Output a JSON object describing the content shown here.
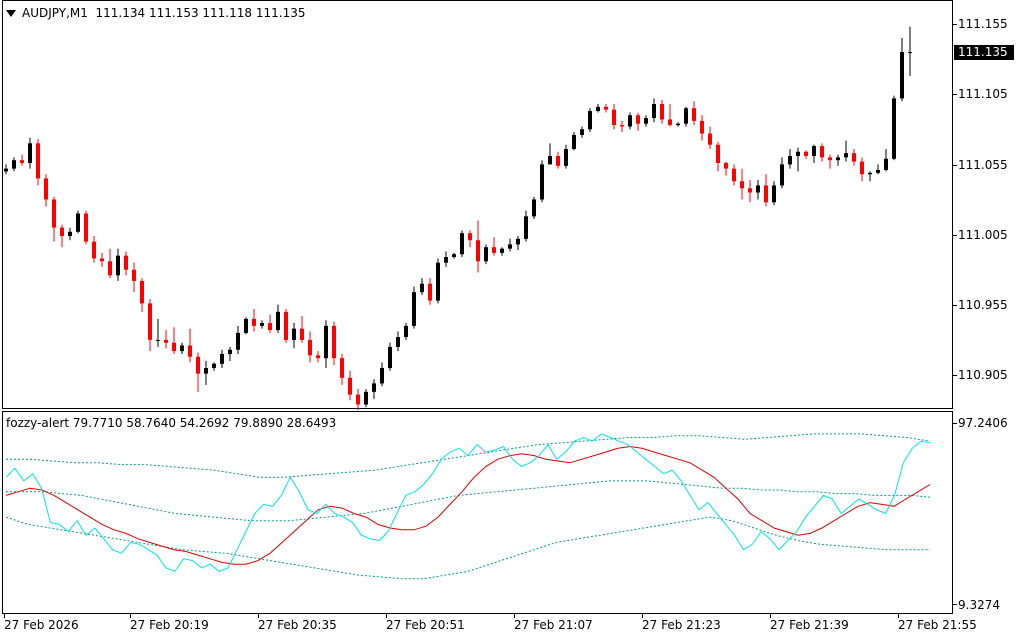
{
  "main": {
    "symbol": "AUDJPY,M1",
    "ohlc": "111.134 111.153 111.118 111.135",
    "price_labels": [
      "111.155",
      "111.105",
      "111.055",
      "111.005",
      "110.955",
      "110.905"
    ],
    "current_price": "111.135"
  },
  "indicator": {
    "header": "fozzy-alert 79.7710 58.7640 54.2692 79.8890 28.6493",
    "axis_labels": [
      "97.2406",
      "9.3274"
    ]
  },
  "time_labels": [
    "27 Feb 2026",
    "27 Feb 20:19",
    "27 Feb 20:35",
    "27 Feb 20:51",
    "27 Feb 21:07",
    "27 Feb 21:23",
    "27 Feb 21:39",
    "27 Feb 21:55"
  ],
  "colors": {
    "bull": "#000000",
    "bear": "#ff0000",
    "doji": "#00aa00",
    "cyan": "#00e5ee",
    "red": "#dd0000",
    "band": "#009c8c"
  },
  "chart_data": [
    {
      "type": "candlestick",
      "title": "AUDJPY,M1",
      "ylim": [
        110.885,
        111.165
      ],
      "candles": [
        [
          111.05,
          111.055,
          111.048,
          111.052
        ],
        [
          111.052,
          111.06,
          111.05,
          111.058
        ],
        [
          111.058,
          111.062,
          111.054,
          111.056
        ],
        [
          111.056,
          111.074,
          111.052,
          111.07
        ],
        [
          111.07,
          111.073,
          111.04,
          111.045
        ],
        [
          111.045,
          111.048,
          111.025,
          111.03
        ],
        [
          111.03,
          111.032,
          111.0,
          111.01
        ],
        [
          111.01,
          111.012,
          110.996,
          111.004
        ],
        [
          111.004,
          111.01,
          111.001,
          111.007
        ],
        [
          111.007,
          111.022,
          111.006,
          111.02
        ],
        [
          111.02,
          111.022,
          110.998,
          111.0
        ],
        [
          111.0,
          111.004,
          110.985,
          110.988
        ],
        [
          110.988,
          110.992,
          110.982,
          110.986
        ],
        [
          110.986,
          110.995,
          110.974,
          110.976
        ],
        [
          110.976,
          110.995,
          110.972,
          110.99
        ],
        [
          110.99,
          110.993,
          110.976,
          110.98
        ],
        [
          110.98,
          110.985,
          110.964,
          110.972
        ],
        [
          110.972,
          110.974,
          110.95,
          110.956
        ],
        [
          110.956,
          110.959,
          110.922,
          110.93
        ],
        [
          110.93,
          110.945,
          110.925,
          110.93
        ],
        [
          110.93,
          110.937,
          110.924,
          110.928
        ],
        [
          110.928,
          110.939,
          110.92,
          110.922
        ],
        [
          110.922,
          110.928,
          110.92,
          110.926
        ],
        [
          110.926,
          110.938,
          110.914,
          110.918
        ],
        [
          110.918,
          110.921,
          110.893,
          110.906
        ],
        [
          110.906,
          110.915,
          110.898,
          110.91
        ],
        [
          110.91,
          110.914,
          110.908,
          110.913
        ],
        [
          110.913,
          110.923,
          110.91,
          110.92
        ],
        [
          110.92,
          110.925,
          110.915,
          110.923
        ],
        [
          110.923,
          110.94,
          110.92,
          110.935
        ],
        [
          110.935,
          110.946,
          110.934,
          110.945
        ],
        [
          110.945,
          110.952,
          110.936,
          110.94
        ],
        [
          110.94,
          110.944,
          110.938,
          110.942
        ],
        [
          110.942,
          110.948,
          110.935,
          110.937
        ],
        [
          110.937,
          110.955,
          110.935,
          110.95
        ],
        [
          110.95,
          110.952,
          110.928,
          110.93
        ],
        [
          110.93,
          110.942,
          110.924,
          110.938
        ],
        [
          110.938,
          110.947,
          110.928,
          110.93
        ],
        [
          110.93,
          110.936,
          110.914,
          110.919
        ],
        [
          110.919,
          110.922,
          110.914,
          110.917
        ],
        [
          110.917,
          110.944,
          110.91,
          110.94
        ],
        [
          110.94,
          110.943,
          110.912,
          110.917
        ],
        [
          110.917,
          110.92,
          110.898,
          110.903
        ],
        [
          110.903,
          110.908,
          110.887,
          110.891
        ],
        [
          110.891,
          110.895,
          110.88,
          110.884
        ],
        [
          110.884,
          110.895,
          110.882,
          110.893
        ],
        [
          110.893,
          110.902,
          110.888,
          110.899
        ],
        [
          110.899,
          110.914,
          110.897,
          110.91
        ],
        [
          110.91,
          110.928,
          110.908,
          110.925
        ],
        [
          110.925,
          110.936,
          110.922,
          110.932
        ],
        [
          110.932,
          110.942,
          110.93,
          110.94
        ],
        [
          110.94,
          110.968,
          110.938,
          110.964
        ],
        [
          110.964,
          110.974,
          110.962,
          110.97
        ],
        [
          110.97,
          110.974,
          110.955,
          110.958
        ],
        [
          110.958,
          110.988,
          110.956,
          110.985
        ],
        [
          110.985,
          110.993,
          110.982,
          110.989
        ],
        [
          110.989,
          110.992,
          110.988,
          110.991
        ],
        [
          110.991,
          111.008,
          110.989,
          111.006
        ],
        [
          111.006,
          111.008,
          110.996,
          111.001
        ],
        [
          111.001,
          111.015,
          110.978,
          110.986
        ],
        [
          110.986,
          110.998,
          110.984,
          110.996
        ],
        [
          110.996,
          111.003,
          110.99,
          110.992
        ],
        [
          110.992,
          110.996,
          110.99,
          110.995
        ],
        [
          110.995,
          111.002,
          110.993,
          110.998
        ],
        [
          110.998,
          111.004,
          110.994,
          111.002
        ],
        [
          111.002,
          111.022,
          111.0,
          111.018
        ],
        [
          111.018,
          111.032,
          111.016,
          111.03
        ],
        [
          111.03,
          111.058,
          111.028,
          111.055
        ],
        [
          111.055,
          111.07,
          111.055,
          111.061
        ],
        [
          111.061,
          111.064,
          111.052,
          111.054
        ],
        [
          111.054,
          111.069,
          111.052,
          111.066
        ],
        [
          111.066,
          111.078,
          111.065,
          111.076
        ],
        [
          111.076,
          111.082,
          111.074,
          111.08
        ],
        [
          111.08,
          111.095,
          111.078,
          111.093
        ],
        [
          111.093,
          111.098,
          111.092,
          111.096
        ],
        [
          111.096,
          111.098,
          111.092,
          111.094
        ],
        [
          111.094,
          111.098,
          111.08,
          111.083
        ],
        [
          111.083,
          111.086,
          111.078,
          111.082
        ],
        [
          111.082,
          111.092,
          111.08,
          111.09
        ],
        [
          111.09,
          111.092,
          111.079,
          111.084
        ],
        [
          111.084,
          111.09,
          111.082,
          111.088
        ],
        [
          111.088,
          111.102,
          111.085,
          111.098
        ],
        [
          111.098,
          111.101,
          111.084,
          111.087
        ],
        [
          111.087,
          111.098,
          111.082,
          111.083
        ],
        [
          111.083,
          111.085,
          111.082,
          111.084
        ],
        [
          111.084,
          111.096,
          111.082,
          111.095
        ],
        [
          111.095,
          111.1,
          111.083,
          111.086
        ],
        [
          111.086,
          111.09,
          111.072,
          111.077
        ],
        [
          111.077,
          111.082,
          111.066,
          111.069
        ],
        [
          111.069,
          111.071,
          111.05,
          111.056
        ],
        [
          111.056,
          111.057,
          111.047,
          111.052
        ],
        [
          111.052,
          111.055,
          111.04,
          111.043
        ],
        [
          111.043,
          111.052,
          111.03,
          111.038
        ],
        [
          111.038,
          111.044,
          111.028,
          111.035
        ],
        [
          111.035,
          111.044,
          111.03,
          111.04
        ],
        [
          111.04,
          111.048,
          111.025,
          111.028
        ],
        [
          111.028,
          111.043,
          111.026,
          111.04
        ],
        [
          111.04,
          111.06,
          111.038,
          111.055
        ],
        [
          111.055,
          111.066,
          111.052,
          111.061
        ],
        [
          111.061,
          111.067,
          111.05,
          111.064
        ],
        [
          111.064,
          111.065,
          111.059,
          111.061
        ],
        [
          111.061,
          111.069,
          111.056,
          111.068
        ],
        [
          111.068,
          111.07,
          111.057,
          111.06
        ],
        [
          111.06,
          111.062,
          111.052,
          111.058
        ],
        [
          111.058,
          111.062,
          111.054,
          111.06
        ],
        [
          111.06,
          111.072,
          111.057,
          111.063
        ],
        [
          111.063,
          111.066,
          111.054,
          111.057
        ],
        [
          111.057,
          111.06,
          111.043,
          111.048
        ],
        [
          111.048,
          111.05,
          111.043,
          111.049
        ],
        [
          111.049,
          111.055,
          111.048,
          111.051
        ],
        [
          111.051,
          111.066,
          111.05,
          111.059
        ],
        [
          111.059,
          111.104,
          111.058,
          111.102
        ],
        [
          111.102,
          111.145,
          111.1,
          111.135
        ],
        [
          111.135,
          111.153,
          111.118,
          111.135
        ]
      ]
    },
    {
      "type": "line",
      "title": "fozzy-alert",
      "ylim": [
        9.3274,
        97.2406
      ],
      "series": [
        {
          "values": [
            70,
            75,
            68,
            72,
            64,
            45,
            44,
            40,
            46,
            38,
            42,
            36,
            30,
            28,
            34,
            33,
            30,
            27,
            20,
            18,
            25,
            24,
            20,
            22,
            18,
            20,
            30,
            40,
            50,
            55,
            54,
            60,
            70,
            62,
            52,
            50,
            55,
            50,
            48,
            45,
            38,
            36,
            35,
            40,
            50,
            60,
            62,
            66,
            72,
            80,
            84,
            86,
            82,
            88,
            84,
            85,
            87,
            80,
            76,
            78,
            82,
            88,
            80,
            84,
            90,
            92,
            90,
            94,
            92,
            90,
            88,
            84,
            80,
            76,
            72,
            74,
            68,
            60,
            52,
            56,
            50,
            44,
            38,
            30,
            33,
            40,
            36,
            30,
            35,
            40,
            48,
            54,
            60,
            58,
            50,
            54,
            58,
            55,
            52,
            50,
            60,
            78,
            86,
            90,
            89
          ]
        },
        {
          "values": [
            60,
            62,
            64,
            63,
            60,
            56,
            52,
            48,
            44,
            41,
            39,
            36,
            34,
            32,
            30,
            29,
            27,
            25,
            23,
            22,
            22,
            24,
            28,
            34,
            40,
            46,
            52,
            54,
            53,
            50,
            48,
            44,
            42,
            41,
            41,
            43,
            48,
            55,
            62,
            70,
            76,
            80,
            82,
            83,
            82,
            80,
            79,
            78,
            80,
            82,
            84,
            86,
            87,
            86,
            84,
            82,
            80,
            78,
            74,
            70,
            64,
            58,
            50,
            46,
            42,
            40,
            38,
            39,
            42,
            46,
            50,
            54,
            56,
            55,
            54,
            58,
            62,
            66
          ]
        },
        {
          "values": [
            62,
            62,
            62,
            61,
            60,
            58,
            56,
            54,
            52,
            50,
            49,
            48,
            47,
            46,
            46,
            46,
            47,
            48,
            49,
            50,
            52,
            54,
            56,
            58,
            60,
            61,
            62,
            63,
            64,
            65,
            66,
            67,
            68,
            68,
            68,
            67,
            66,
            65,
            64,
            64,
            63,
            63,
            62,
            62,
            61,
            61,
            60,
            60,
            60,
            59
          ]
        },
        {
          "values": [
            80,
            80,
            79,
            78,
            78,
            77,
            77,
            76,
            75,
            74,
            72,
            70,
            70,
            71,
            72,
            73,
            74,
            76,
            78,
            80,
            82,
            84,
            86,
            88,
            89,
            90,
            91,
            92,
            92,
            93,
            93,
            92,
            91,
            92,
            93,
            94,
            94,
            94,
            93,
            92,
            90
          ]
        },
        {
          "values": [
            48,
            44,
            42,
            40,
            38,
            36,
            34,
            32,
            30,
            29,
            28,
            26,
            24,
            22,
            20,
            18,
            16,
            15,
            14,
            14,
            16,
            18,
            22,
            26,
            30,
            34,
            36,
            38,
            40,
            42,
            44,
            46,
            48,
            46,
            42,
            38,
            35,
            33,
            32,
            31,
            30,
            30,
            30
          ]
        }
      ]
    }
  ]
}
